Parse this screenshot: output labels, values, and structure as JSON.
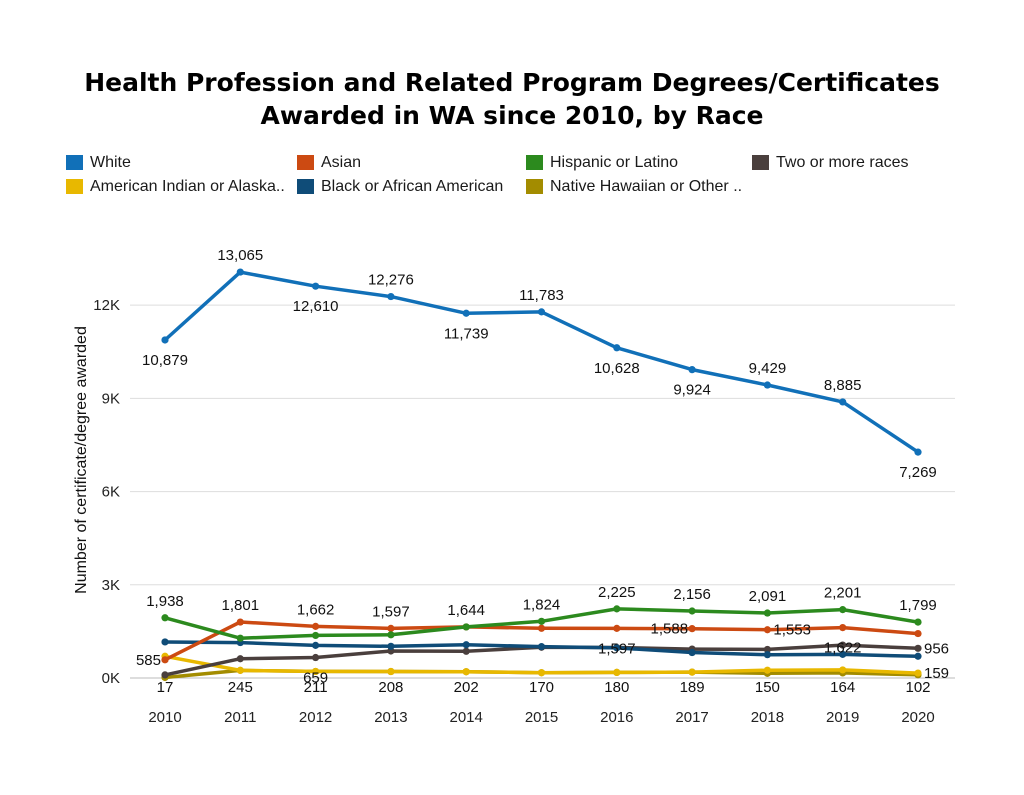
{
  "chart_data": {
    "type": "line",
    "title_line1": "Health Profession and Related Program Degrees/Certificates",
    "title_line2": "Awarded in WA since 2010, by Race",
    "xlabel": "",
    "ylabel": "Number of certificate/degree awarded",
    "ylim": [
      0,
      14000
    ],
    "yticks": [
      {
        "value": 0,
        "label": "0K"
      },
      {
        "value": 3000,
        "label": "3K"
      },
      {
        "value": 6000,
        "label": "6K"
      },
      {
        "value": 9000,
        "label": "9K"
      },
      {
        "value": 12000,
        "label": "12K"
      }
    ],
    "grid": true,
    "legend_position": "top",
    "x": [
      "2010",
      "2011",
      "2012",
      "2013",
      "2014",
      "2015",
      "2016",
      "2017",
      "2018",
      "2019",
      "2020"
    ],
    "series": [
      {
        "name": "White",
        "color": "#1170b8",
        "values": [
          10879,
          13065,
          12610,
          12276,
          11739,
          11783,
          10628,
          9924,
          9429,
          8885,
          7269
        ]
      },
      {
        "name": "Asian",
        "color": "#cc4a12",
        "values": [
          585,
          1801,
          1662,
          1597,
          1644,
          1600,
          1597,
          1588,
          1553,
          1622,
          1430
        ]
      },
      {
        "name": "Hispanic or Latino",
        "color": "#2c8a1e",
        "values": [
          1938,
          1280,
          1370,
          1390,
          1644,
          1824,
          2225,
          2156,
          2091,
          2201,
          1799
        ]
      },
      {
        "name": "Two or more races",
        "color": "#4a3f3d",
        "values": [
          100,
          620,
          659,
          870,
          860,
          990,
          980,
          930,
          920,
          1060,
          956
        ]
      },
      {
        "name": "American Indian or Alaska..",
        "color": "#e8b800",
        "values": [
          700,
          245,
          211,
          208,
          202,
          170,
          180,
          189,
          250,
          260,
          159
        ]
      },
      {
        "name": "Black or African American",
        "color": "#0f4c78",
        "values": [
          1160,
          1140,
          1050,
          1020,
          1070,
          1010,
          970,
          820,
          750,
          760,
          700
        ]
      },
      {
        "name": "Native Hawaiian or Other ..",
        "color": "#a38c00",
        "values": [
          17,
          245,
          211,
          208,
          202,
          170,
          180,
          189,
          150,
          164,
          102
        ]
      }
    ],
    "annotations": [
      {
        "series": 0,
        "index": 0,
        "text": "10,879",
        "pos": "below"
      },
      {
        "series": 0,
        "index": 1,
        "text": "13,065",
        "pos": "above"
      },
      {
        "series": 0,
        "index": 2,
        "text": "12,610",
        "pos": "below"
      },
      {
        "series": 0,
        "index": 3,
        "text": "12,276",
        "pos": "above"
      },
      {
        "series": 0,
        "index": 4,
        "text": "11,739",
        "pos": "below"
      },
      {
        "series": 0,
        "index": 5,
        "text": "11,783",
        "pos": "above"
      },
      {
        "series": 0,
        "index": 6,
        "text": "10,628",
        "pos": "below"
      },
      {
        "series": 0,
        "index": 7,
        "text": "9,924",
        "pos": "below"
      },
      {
        "series": 0,
        "index": 8,
        "text": "9,429",
        "pos": "above"
      },
      {
        "series": 0,
        "index": 9,
        "text": "8,885",
        "pos": "above"
      },
      {
        "series": 0,
        "index": 10,
        "text": "7,269",
        "pos": "below"
      },
      {
        "series": 2,
        "index": 0,
        "text": "1,938",
        "pos": "above"
      },
      {
        "series": 1,
        "index": 1,
        "text": "1,801",
        "pos": "above"
      },
      {
        "series": 1,
        "index": 2,
        "text": "1,662",
        "pos": "above"
      },
      {
        "series": 1,
        "index": 3,
        "text": "1,597",
        "pos": "above"
      },
      {
        "series": 1,
        "index": 4,
        "text": "1,644",
        "pos": "above"
      },
      {
        "series": 2,
        "index": 5,
        "text": "1,824",
        "pos": "above"
      },
      {
        "series": 2,
        "index": 6,
        "text": "2,225",
        "pos": "above"
      },
      {
        "series": 2,
        "index": 7,
        "text": "2,156",
        "pos": "above"
      },
      {
        "series": 2,
        "index": 8,
        "text": "2,091",
        "pos": "above"
      },
      {
        "series": 2,
        "index": 9,
        "text": "2,201",
        "pos": "above"
      },
      {
        "series": 2,
        "index": 10,
        "text": "1,799",
        "pos": "above"
      },
      {
        "series": 1,
        "index": 0,
        "text": "585",
        "pos": "left"
      },
      {
        "series": 1,
        "index": 6,
        "text": "1,597",
        "pos": "below"
      },
      {
        "series": 1,
        "index": 7,
        "text": "1,588",
        "pos": "left"
      },
      {
        "series": 1,
        "index": 8,
        "text": "1,553",
        "pos": "right"
      },
      {
        "series": 1,
        "index": 9,
        "text": "1,622",
        "pos": "below"
      },
      {
        "series": 3,
        "index": 2,
        "text": "659",
        "pos": "below"
      },
      {
        "series": 3,
        "index": 10,
        "text": "956",
        "pos": "right"
      },
      {
        "series": 4,
        "index": 10,
        "text": "159",
        "pos": "right"
      },
      {
        "series": 6,
        "index": 0,
        "text": "17",
        "pos": "bottom"
      },
      {
        "series": 6,
        "index": 1,
        "text": "245",
        "pos": "bottom"
      },
      {
        "series": 6,
        "index": 2,
        "text": "211",
        "pos": "bottom"
      },
      {
        "series": 6,
        "index": 3,
        "text": "208",
        "pos": "bottom"
      },
      {
        "series": 6,
        "index": 4,
        "text": "202",
        "pos": "bottom"
      },
      {
        "series": 6,
        "index": 5,
        "text": "170",
        "pos": "bottom"
      },
      {
        "series": 6,
        "index": 6,
        "text": "180",
        "pos": "bottom"
      },
      {
        "series": 6,
        "index": 7,
        "text": "189",
        "pos": "bottom"
      },
      {
        "series": 6,
        "index": 8,
        "text": "150",
        "pos": "bottom"
      },
      {
        "series": 6,
        "index": 9,
        "text": "164",
        "pos": "bottom"
      },
      {
        "series": 6,
        "index": 10,
        "text": "102",
        "pos": "bottom"
      }
    ]
  }
}
